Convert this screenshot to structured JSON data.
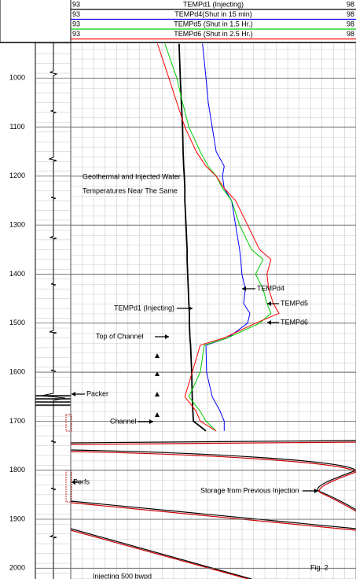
{
  "chart_data": {
    "type": "line",
    "xlim": [
      93,
      98
    ],
    "ylim": [
      929,
      2022
    ],
    "yticks": [
      1000,
      1100,
      1200,
      1300,
      1400,
      1500,
      1600,
      1700,
      1800,
      1900,
      2000
    ],
    "depths": [
      930,
      1000,
      1050,
      1100,
      1150,
      1180,
      1200,
      1225,
      1250,
      1300,
      1350,
      1370,
      1400,
      1430,
      1460,
      1480,
      1500,
      1530,
      1545,
      1600,
      1650,
      1680,
      1700,
      1720
    ],
    "series": [
      {
        "name": "TEMPd1 (Injecting)",
        "color": "#000000",
        "values": [
          94.9,
          94.92,
          94.94,
          94.96,
          94.97,
          94.98,
          94.99,
          95.0,
          95.0,
          95.02,
          95.04,
          95.04,
          95.05,
          95.06,
          95.07,
          95.08,
          95.08,
          95.09,
          95.1,
          95.12,
          95.13,
          95.14,
          95.15,
          95.37
        ]
      },
      {
        "name": "TEMPd4(Shut in 15 min)",
        "color": "#0000ff",
        "values": [
          95.31,
          95.37,
          95.41,
          95.48,
          95.55,
          95.69,
          95.66,
          95.69,
          95.82,
          95.89,
          95.96,
          95.98,
          96.0,
          96.06,
          96.03,
          96.14,
          96.1,
          95.75,
          95.37,
          95.38,
          95.48,
          95.62,
          95.69,
          95.69
        ]
      },
      {
        "name": "TEMPd5 (Shut in 1.5 Hr.)",
        "color": "#00cc00",
        "values": [
          94.65,
          94.86,
          94.96,
          95.07,
          95.27,
          95.41,
          95.55,
          95.66,
          95.82,
          95.96,
          96.17,
          96.37,
          96.24,
          96.37,
          96.44,
          96.51,
          96.31,
          95.75,
          95.34,
          95.27,
          95.07,
          95.27,
          95.37,
          95.55
        ]
      },
      {
        "name": "TEMPd6 (Shut in 2.5 Hr.)",
        "color": "#ff0000",
        "values": [
          94.52,
          94.72,
          94.86,
          95.0,
          95.2,
          95.37,
          95.55,
          95.69,
          95.89,
          96.1,
          96.31,
          96.51,
          96.44,
          96.47,
          96.55,
          96.65,
          96.24,
          95.69,
          95.27,
          95.13,
          95.0,
          95.2,
          95.27,
          95.55
        ]
      }
    ],
    "annotations": [
      "Geothermal and Injected Water",
      "Temperatures Near The Same",
      "TEMPd4",
      "TEMPd5",
      "TEMPd6",
      "TEMPd1  (Injecting)",
      "Top of Channel",
      "Packer",
      "Channel",
      "Perfs",
      "Storage from Previous Injection",
      "Fig. 2",
      "Injecting 500 bwpd"
    ]
  }
}
